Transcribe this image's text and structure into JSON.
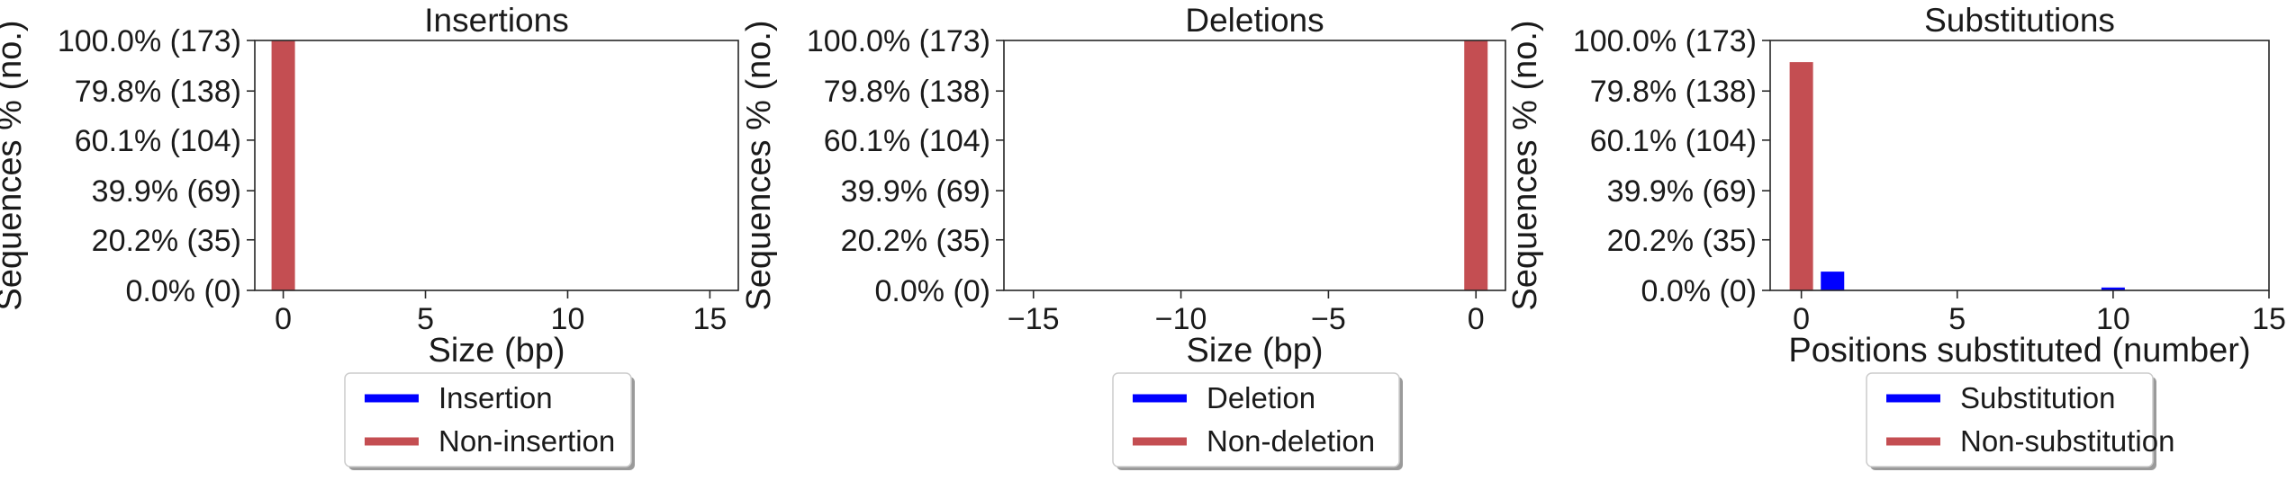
{
  "colors": {
    "modified": "#0000ff",
    "unmodified": "#c44e52"
  },
  "chart_data": [
    {
      "type": "bar",
      "title": "Insertions",
      "xlabel": "Size (bp)",
      "ylabel": "Sequences % (no.)",
      "xlim": [
        -1,
        16
      ],
      "ylim": [
        0,
        173
      ],
      "xticks": [
        0,
        5,
        10,
        15
      ],
      "xtick_labels": [
        "0",
        "5",
        "10",
        "15"
      ],
      "yticks": [
        0,
        35,
        69,
        104,
        138,
        173
      ],
      "ytick_labels": [
        "0.0% (0)",
        "20.2% (35)",
        "39.9% (69)",
        "60.1% (104)",
        "79.8% (138)",
        "100.0% (173)"
      ],
      "grid": false,
      "legend_position": "bottom-center",
      "series": [
        {
          "name": "Insertion",
          "color": "#0000ff",
          "points": []
        },
        {
          "name": "Non-insertion",
          "color": "#c44e52",
          "points": [
            {
              "x": 0,
              "y": 173
            }
          ]
        }
      ]
    },
    {
      "type": "bar",
      "title": "Deletions",
      "xlabel": "Size (bp)",
      "ylabel": "Sequences % (no.)",
      "xlim": [
        -16,
        1
      ],
      "ylim": [
        0,
        173
      ],
      "xticks": [
        -15,
        -10,
        -5,
        0
      ],
      "xtick_labels": [
        "−15",
        "−10",
        "−5",
        "0"
      ],
      "yticks": [
        0,
        35,
        69,
        104,
        138,
        173
      ],
      "ytick_labels": [
        "0.0% (0)",
        "20.2% (35)",
        "39.9% (69)",
        "60.1% (104)",
        "79.8% (138)",
        "100.0% (173)"
      ],
      "grid": false,
      "legend_position": "bottom-center",
      "series": [
        {
          "name": "Deletion",
          "color": "#0000ff",
          "points": []
        },
        {
          "name": "Non-deletion",
          "color": "#c44e52",
          "points": [
            {
              "x": 0,
              "y": 173
            }
          ]
        }
      ]
    },
    {
      "type": "bar",
      "title": "Substitutions",
      "xlabel": "Positions substituted (number)",
      "ylabel": "Sequences % (no.)",
      "xlim": [
        -1,
        15
      ],
      "ylim": [
        0,
        173
      ],
      "xticks": [
        0,
        5,
        10,
        15
      ],
      "xtick_labels": [
        "0",
        "5",
        "10",
        "15"
      ],
      "yticks": [
        0,
        35,
        69,
        104,
        138,
        173
      ],
      "ytick_labels": [
        "0.0% (0)",
        "20.2% (35)",
        "39.9% (69)",
        "60.1% (104)",
        "79.8% (138)",
        "100.0% (173)"
      ],
      "grid": false,
      "legend_position": "bottom-center",
      "series": [
        {
          "name": "Substitution",
          "color": "#0000ff",
          "points": [
            {
              "x": 1,
              "y": 13
            },
            {
              "x": 10,
              "y": 2
            }
          ]
        },
        {
          "name": "Non-substitution",
          "color": "#c44e52",
          "points": [
            {
              "x": 0,
              "y": 158
            }
          ]
        }
      ]
    }
  ]
}
